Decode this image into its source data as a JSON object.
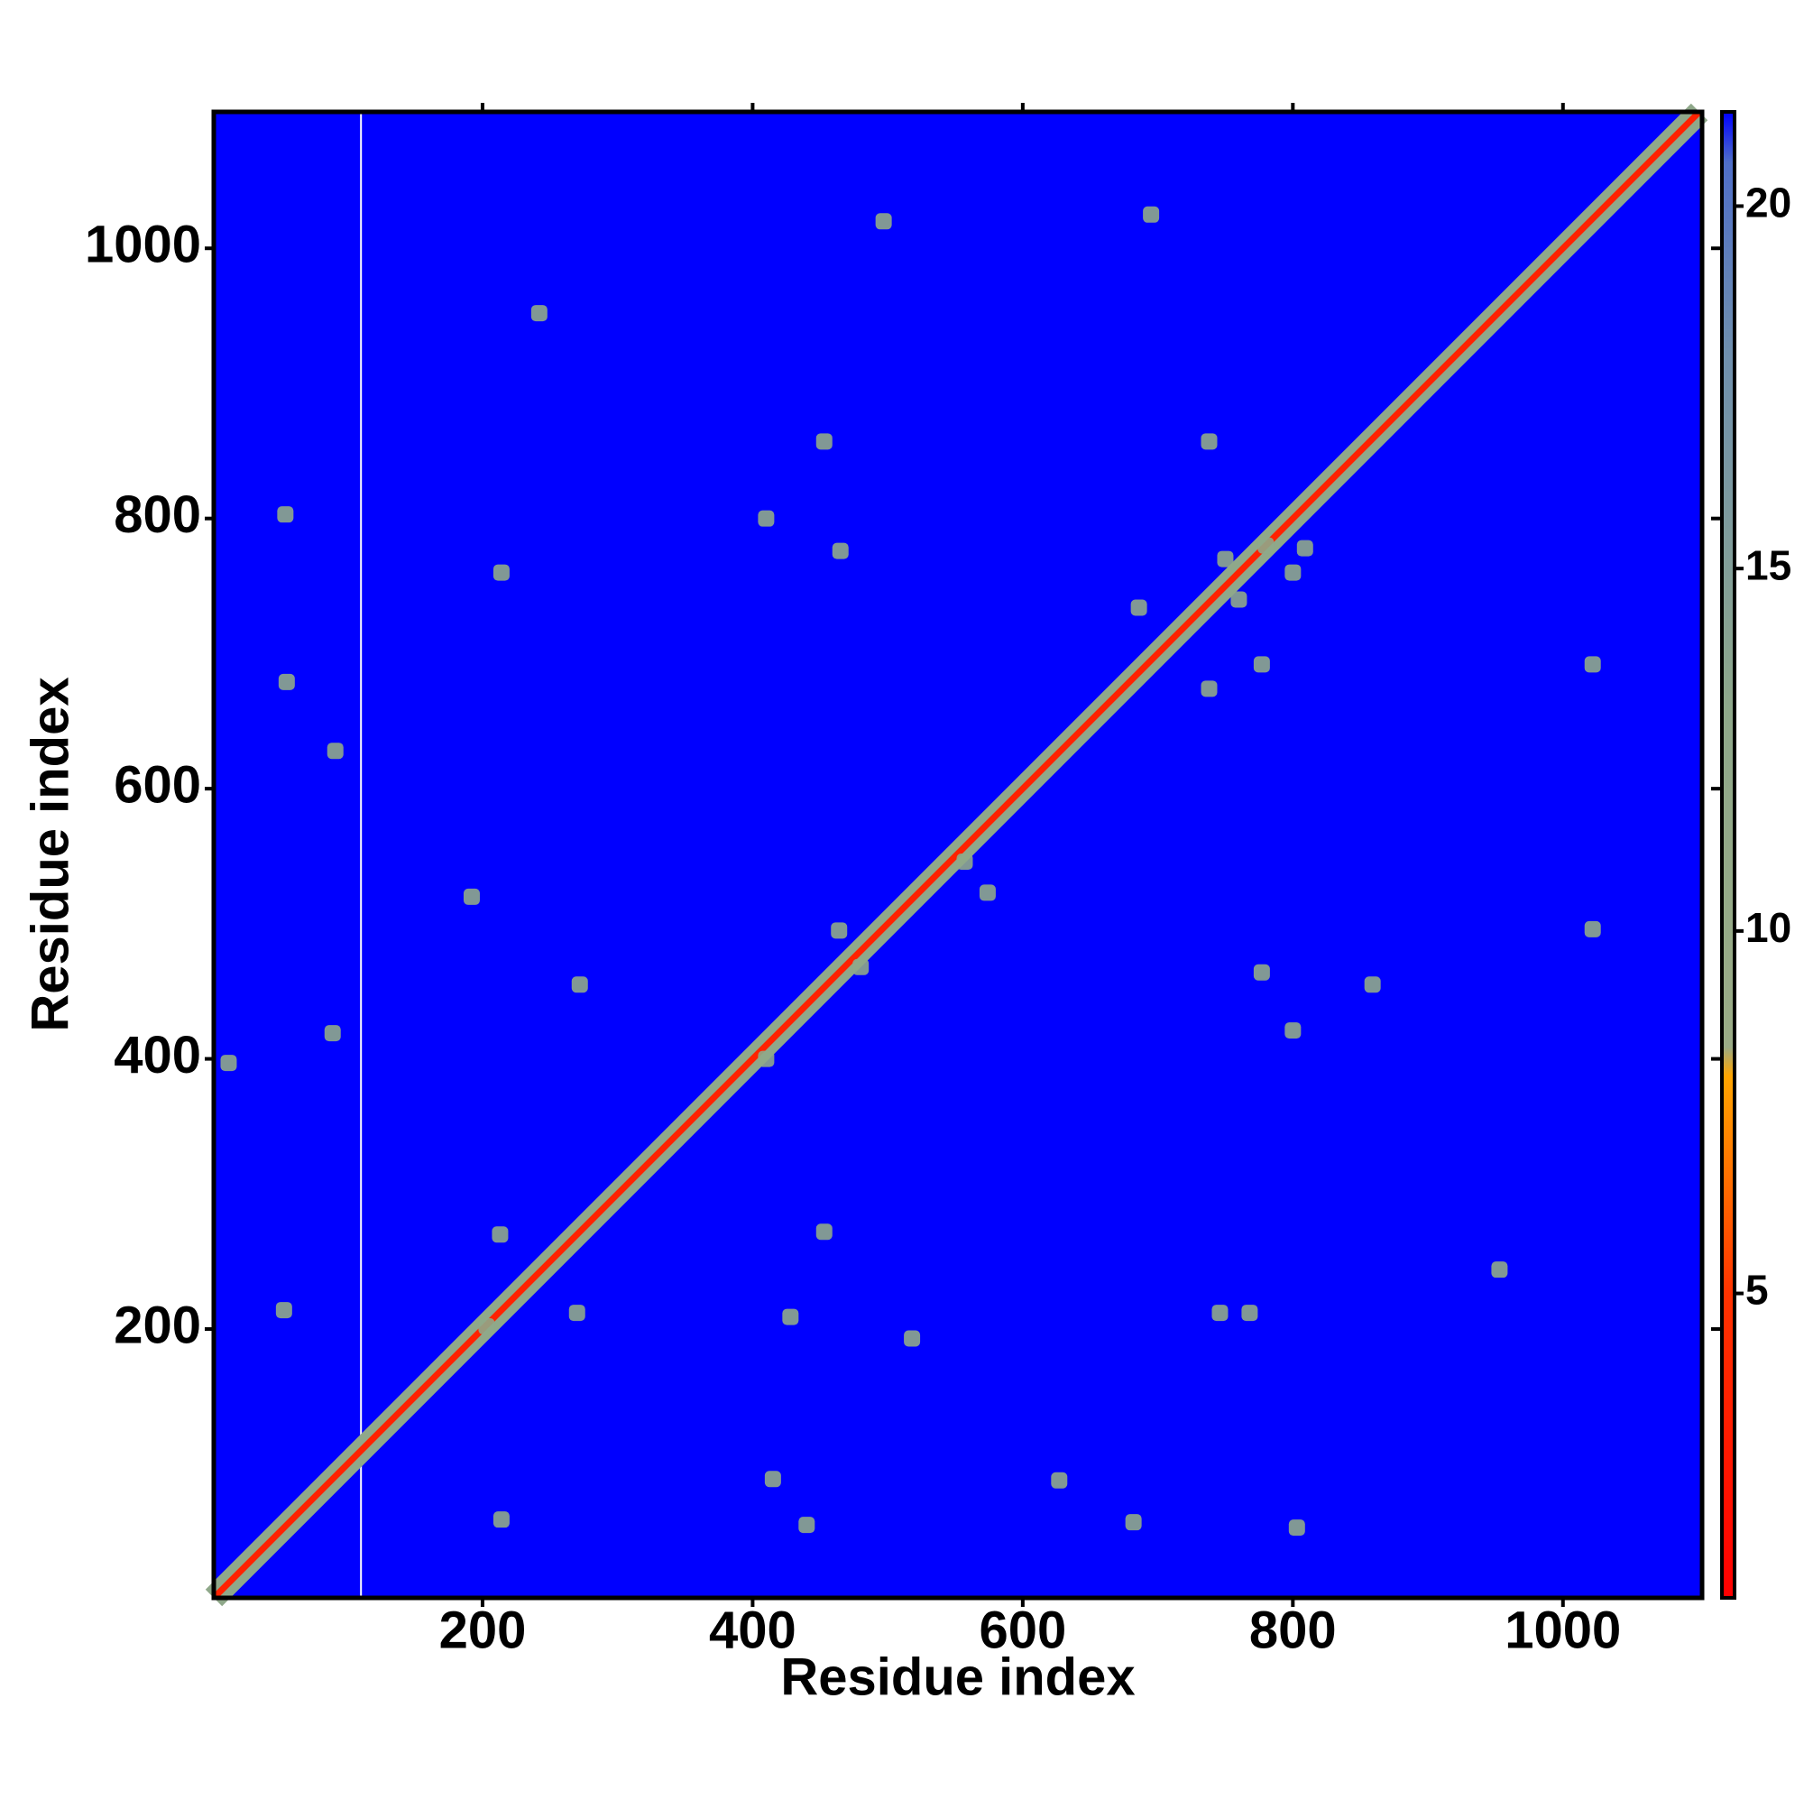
{
  "chart_data": {
    "type": "contact_map",
    "x_label": "Residue index",
    "y_label": "Residue index",
    "xlim": [
      1,
      1103
    ],
    "ylim": [
      1,
      1101
    ],
    "xticks": [
      200,
      400,
      600,
      800,
      1000
    ],
    "yticks": [
      200,
      400,
      600,
      800,
      1000
    ],
    "clim": [
      0.8,
      21.3
    ],
    "cticks": [
      5,
      10,
      15,
      20
    ],
    "colorscale": [
      {
        "value": 0.8,
        "color": "#ff0000"
      },
      {
        "value": 5,
        "color": "#ff3300"
      },
      {
        "value": 8,
        "color": "#ffa500"
      },
      {
        "value": 8.4,
        "color": "#9aab86"
      },
      {
        "value": 13,
        "color": "#8fa88a"
      },
      {
        "value": 18,
        "color": "#6f8fae"
      },
      {
        "value": 20.6,
        "color": "#4f6fc8"
      },
      {
        "value": 21.3,
        "color": "#0000ff"
      }
    ],
    "background": "#0000ff",
    "contact_color": "#8fa88a",
    "diagonal_color": "#ff2200",
    "blank_column": 110,
    "contacts": {
      "x": [
        695,
        497,
        242,
        453,
        54,
        214,
        410,
        465,
        1022,
        686,
        738,
        750,
        780,
        760,
        800,
        91,
        55,
        192,
        272,
        777,
        859,
        1022,
        89,
        800,
        410,
        464,
        480,
        453,
        213,
        270,
        953,
        518,
        768,
        746,
        203,
        627,
        415,
        214,
        682,
        803,
        557,
        574,
        738,
        809,
        777,
        428,
        440,
        53,
        12
      ],
      "y": [
        1025,
        1020,
        952,
        857,
        803,
        760,
        800,
        776,
        692,
        734,
        674,
        770,
        780,
        740,
        760,
        628,
        679,
        520,
        455,
        464,
        455,
        496,
        419,
        421,
        400,
        495,
        468,
        272,
        270,
        212,
        244,
        193,
        212,
        212,
        202,
        88,
        89,
        59,
        57,
        53,
        546,
        523,
        857,
        778,
        692,
        209,
        55,
        214,
        397
      ]
    }
  }
}
